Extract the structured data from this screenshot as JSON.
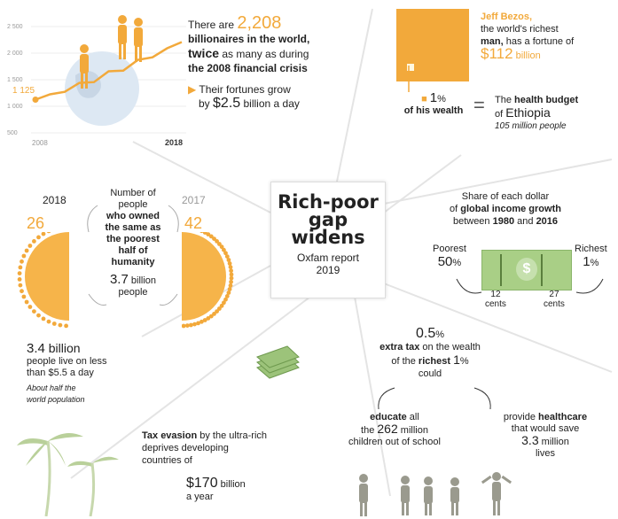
{
  "colors": {
    "accent": "#f2a93b",
    "accent_dark": "#e7941f",
    "text": "#222222",
    "money_green": "#9cc37a"
  },
  "center": {
    "title_line1": "Rich-poor",
    "title_line2": "gap",
    "title_line3": "widens",
    "subtitle": "Oxfam report",
    "year": "2019"
  },
  "billionaires": {
    "chart_data": {
      "type": "line",
      "x": [
        "2008",
        "2018"
      ],
      "y_start": 1125,
      "y_end": 2208,
      "yticks": [
        "2 500",
        "2 000",
        "1 500",
        "1 000",
        "500"
      ],
      "start_label": "1 125",
      "x_start_label": "2008",
      "x_end_label": "2018"
    },
    "line1_a": "There are ",
    "count": "2,208",
    "line2": "billionaires in the world,",
    "line3_a": "twice",
    "line3_b": " as many as during",
    "line4": "the 2008 financial crisis",
    "grow_a": "Their fortunes grow",
    "grow_b": "by ",
    "grow_amount": "$2.5",
    "grow_c": " billion a day"
  },
  "bezos": {
    "name": "Jeff Bezos,",
    "line2": "the world's richest",
    "line3": "man,",
    "line3b": " has a fortune of",
    "fortune": "$112",
    "fortune_unit": " billion",
    "pct": "1",
    "pct_sign": "%",
    "of_wealth": "of his wealth",
    "equals": "=",
    "budget_a": "The ",
    "budget_b": "health budget",
    "budget_c": "of ",
    "country": "Ethiopia",
    "population": "105 million people"
  },
  "owners": {
    "year_left": "2018",
    "year_right": "2017",
    "num_left": "26",
    "num_right": "42",
    "line1": "Number of",
    "line2": "people",
    "line3": "who owned",
    "line4": "the same as",
    "line5": "the poorest",
    "line6": "half of",
    "line7": "humanity",
    "billions": "3.7",
    "billions_unit": " billion",
    "people": "people"
  },
  "income": {
    "line1": "Share of each dollar",
    "line2_a": "of ",
    "line2_b": "global income growth",
    "line3_a": "between ",
    "line3_b": "1980",
    "line3_c": " and ",
    "line3_d": "2016",
    "poorest_label": "Poorest",
    "poorest_pct": "50",
    "poorest_pct_sign": "%",
    "richest_label": "Richest",
    "richest_pct": "1",
    "richest_pct_sign": "%",
    "left_cents_num": "12",
    "left_cents": "cents",
    "right_cents_num": "27",
    "right_cents": "cents",
    "bill_symbol": "$"
  },
  "poverty": {
    "amount": "3.4",
    "unit": " billion",
    "line2": "people live on less",
    "line3": "than $5.5 a day",
    "note1": "About half the",
    "note2": "world population"
  },
  "tax": {
    "line1_a": "Tax evasion",
    "line1_b": " by the ultra-rich",
    "line2": "deprives developing",
    "line3": "countries of",
    "amount": "$170",
    "unit": " billion",
    "per": "a year"
  },
  "extra_tax": {
    "pct": "0.5",
    "pct_sign": "%",
    "line2_a": "extra tax",
    "line2_b": " on the wealth",
    "line3_a": "of the ",
    "line3_b": "richest ",
    "line3_c": "1",
    "line3_d": "%",
    "line4": "could",
    "edu_a": "educate",
    "edu_b": " all",
    "edu_c": "the ",
    "edu_num": "262",
    "edu_d": " million",
    "edu_e": "children out of school",
    "health_a": "provide ",
    "health_b": "healthcare",
    "health_c": "that would save",
    "health_num": "3.3",
    "health_d": " million",
    "health_e": "lives"
  }
}
